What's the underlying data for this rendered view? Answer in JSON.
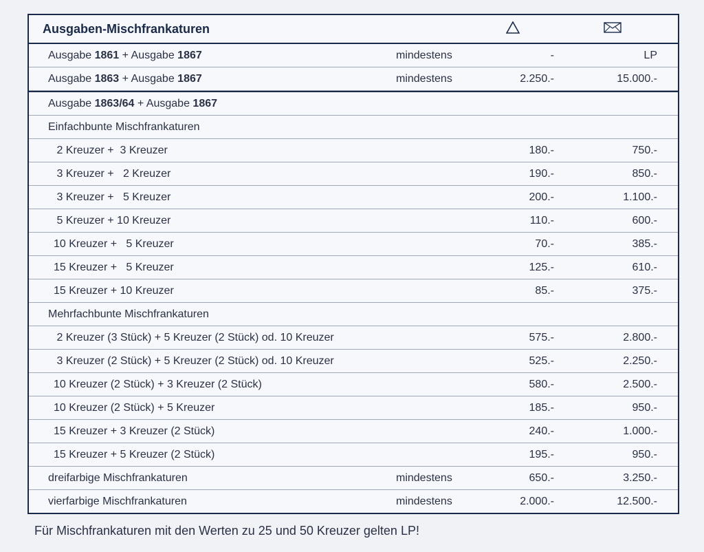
{
  "table": {
    "header": {
      "title": "Ausgaben-Mischfrankaturen",
      "col1_icon": "triangle-icon",
      "col2_icon": "envelope-icon"
    },
    "rows": [
      {
        "type": "data",
        "desc_parts": [
          "Ausgabe ",
          "1861",
          " + Ausgabe ",
          "1867"
        ],
        "qual": "mindestens",
        "p1": "-",
        "p2": "LP",
        "indent": 1,
        "bold_idx": [
          1,
          3
        ]
      },
      {
        "type": "data",
        "desc_parts": [
          "Ausgabe ",
          "1863",
          " + Ausgabe ",
          "1867"
        ],
        "qual": "mindestens",
        "p1": "2.250.-",
        "p2": "15.000.-",
        "indent": 1,
        "bold_idx": [
          1,
          3
        ]
      },
      {
        "type": "section",
        "desc_parts": [
          "Ausgabe ",
          "1863/64",
          " + Ausgabe ",
          "1867"
        ],
        "indent": 1,
        "bold_idx": [
          1,
          3
        ]
      },
      {
        "type": "subhead",
        "desc": "Einfachbunte Mischfrankaturen",
        "indent": 1
      },
      {
        "type": "data",
        "desc": " 2 Kreuzer +  3 Kreuzer",
        "qual": "",
        "p1": "180.-",
        "p2": "750.-",
        "indent": 2
      },
      {
        "type": "data",
        "desc": " 3 Kreuzer +   2 Kreuzer",
        "qual": "",
        "p1": "190.-",
        "p2": "850.-",
        "indent": 2
      },
      {
        "type": "data",
        "desc": " 3 Kreuzer +   5 Kreuzer",
        "qual": "",
        "p1": "200.-",
        "p2": "1.100.-",
        "indent": 2
      },
      {
        "type": "data",
        "desc": " 5 Kreuzer + 10 Kreuzer",
        "qual": "",
        "p1": "110.-",
        "p2": "600.-",
        "indent": 2
      },
      {
        "type": "data",
        "desc": "10 Kreuzer +   5 Kreuzer",
        "qual": "",
        "p1": "70.-",
        "p2": "385.-",
        "indent": 2
      },
      {
        "type": "data",
        "desc": "15 Kreuzer +   5 Kreuzer",
        "qual": "",
        "p1": "125.-",
        "p2": "610.-",
        "indent": 2
      },
      {
        "type": "data",
        "desc": "15 Kreuzer + 10 Kreuzer",
        "qual": "",
        "p1": "85.-",
        "p2": "375.-",
        "indent": 2
      },
      {
        "type": "subhead",
        "desc": "Mehrfachbunte Mischfrankaturen",
        "indent": 1
      },
      {
        "type": "data",
        "desc": " 2 Kreuzer (3 Stück) + 5 Kreuzer (2 Stück) od. 10 Kreuzer",
        "qual": "",
        "p1": "575.-",
        "p2": "2.800.-",
        "indent": 2
      },
      {
        "type": "data",
        "desc": " 3 Kreuzer (2 Stück) + 5 Kreuzer (2 Stück) od. 10 Kreuzer",
        "qual": "",
        "p1": "525.-",
        "p2": "2.250.-",
        "indent": 2
      },
      {
        "type": "data",
        "desc": "10 Kreuzer (2 Stück) + 3 Kreuzer (2 Stück)",
        "qual": "",
        "p1": "580.-",
        "p2": "2.500.-",
        "indent": 2
      },
      {
        "type": "data",
        "desc": "10 Kreuzer (2 Stück) + 5 Kreuzer",
        "qual": "",
        "p1": "185.-",
        "p2": "950.-",
        "indent": 2
      },
      {
        "type": "data",
        "desc": "15 Kreuzer + 3 Kreuzer (2 Stück)",
        "qual": "",
        "p1": "240.-",
        "p2": "1.000.-",
        "indent": 2
      },
      {
        "type": "data",
        "desc": "15 Kreuzer + 5 Kreuzer (2 Stück)",
        "qual": "",
        "p1": "195.-",
        "p2": "950.-",
        "indent": 2
      },
      {
        "type": "data",
        "desc": "dreifarbige Mischfrankaturen",
        "qual": "mindestens",
        "p1": "650.-",
        "p2": "3.250.-",
        "indent": 1
      },
      {
        "type": "data",
        "desc": "vierfarbige Mischfrankaturen",
        "qual": "mindestens",
        "p1": "2.000.-",
        "p2": "12.500.-",
        "indent": 1
      }
    ]
  },
  "footnote": "Für Mischfrankaturen mit den Werten zu 25 und 50 Kreuzer gelten LP!",
  "styling": {
    "border_color": "#1a2a4a",
    "row_divider_color": "#a0a7b5",
    "background": "#f0f2f6",
    "text_color": "#2a3145",
    "header_fontsize": 18,
    "body_fontsize": 16,
    "footnote_fontsize": 18,
    "col_widths": {
      "qual": 110,
      "price1": 120,
      "price2": 130
    }
  }
}
